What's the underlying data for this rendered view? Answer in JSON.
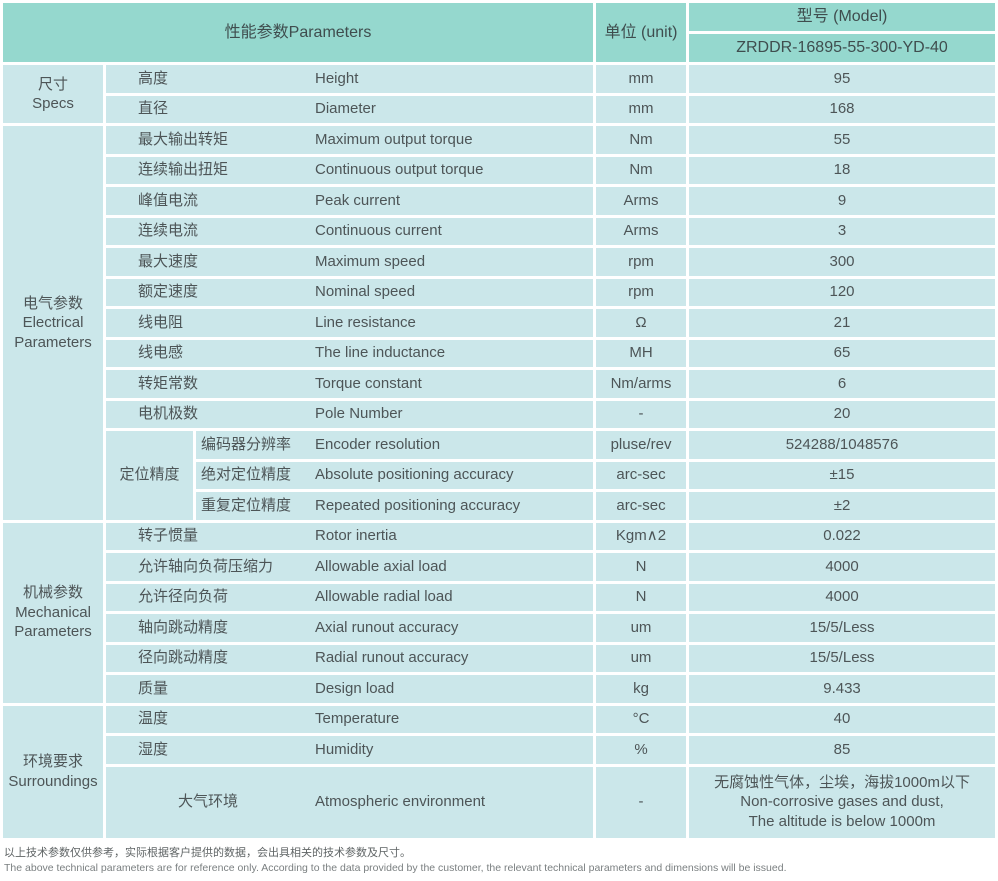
{
  "colors": {
    "header_bg": "#95d8ce",
    "cell_bg": "#cbe7ea",
    "header_text": "#3f4d4e",
    "cell_text": "#4d5557"
  },
  "header": {
    "parameters_label": "性能参数Parameters",
    "unit_label": "单位 (unit)",
    "model_label": "型号 (Model)",
    "model_value": "ZRDDR-16895-55-300-YD-40"
  },
  "sections": [
    {
      "label_lines": [
        "尺寸",
        "Specs"
      ],
      "rows": [
        {
          "zh": "高度",
          "en": "Height",
          "unit": "mm",
          "value": "95"
        },
        {
          "zh": "直径",
          "en": "Diameter",
          "unit": "mm",
          "value": "168"
        }
      ]
    },
    {
      "label_lines": [
        "电气参数",
        "Electrical",
        "Parameters"
      ],
      "rows": [
        {
          "zh": "最大输出转矩",
          "en": "Maximum output torque",
          "unit": "Nm",
          "value": "55"
        },
        {
          "zh": "连续输出扭矩",
          "en": "Continuous output torque",
          "unit": "Nm",
          "value": "18"
        },
        {
          "zh": "峰值电流",
          "en": "Peak current",
          "unit": "Arms",
          "value": "9"
        },
        {
          "zh": "连续电流",
          "en": "Continuous current",
          "unit": "Arms",
          "value": "3"
        },
        {
          "zh": "最大速度",
          "en": "Maximum speed",
          "unit": "rpm",
          "value": "300"
        },
        {
          "zh": "额定速度",
          "en": "Nominal speed",
          "unit": "rpm",
          "value": "120"
        },
        {
          "zh": "线电阻",
          "en": "Line resistance",
          "unit": "Ω",
          "value": "21"
        },
        {
          "zh": "线电感",
          "en": "The line inductance",
          "unit": "MH",
          "value": "65"
        },
        {
          "zh": "转矩常数",
          "en": "Torque constant",
          "unit": "Nm/arms",
          "value": "6"
        },
        {
          "zh": "电机极数",
          "en": "Pole Number",
          "unit": "-",
          "value": "20"
        }
      ],
      "subgroup": {
        "label": "定位精度",
        "rows": [
          {
            "zh": "编码器分辨率",
            "en": "Encoder resolution",
            "unit": "pluse/rev",
            "value": "524288/1048576"
          },
          {
            "zh": "绝对定位精度",
            "en": "Absolute positioning accuracy",
            "unit": "arc-sec",
            "value": "±15"
          },
          {
            "zh": "重复定位精度",
            "en": "Repeated positioning accuracy",
            "unit": "arc-sec",
            "value": "±2"
          }
        ]
      }
    },
    {
      "label_lines": [
        "机械参数",
        "Mechanical",
        "Parameters"
      ],
      "rows": [
        {
          "zh": "转子惯量",
          "en": "Rotor inertia",
          "unit": "Kgm∧2",
          "value": "0.022"
        },
        {
          "zh": "允许轴向负荷压缩力",
          "en": "Allowable axial load",
          "unit": "N",
          "value": "4000"
        },
        {
          "zh": "允许径向负荷",
          "en": "Allowable radial load",
          "unit": "N",
          "value": "4000"
        },
        {
          "zh": "轴向跳动精度",
          "en": "Axial runout accuracy",
          "unit": "um",
          "value": "15/5/Less"
        },
        {
          "zh": "径向跳动精度",
          "en": "Radial runout accuracy",
          "unit": "um",
          "value": "15/5/Less"
        },
        {
          "zh": "质量",
          "en": "Design load",
          "unit": "kg",
          "value": "9.433"
        }
      ]
    },
    {
      "label_lines": [
        "环境要求",
        "Surroundings"
      ],
      "rows": [
        {
          "zh": "温度",
          "en": "Temperature",
          "unit": "°C",
          "value": "40"
        },
        {
          "zh": "湿度",
          "en": "Humidity",
          "unit": "%",
          "value": "85"
        }
      ],
      "tall_row": {
        "zh": "大气环境",
        "en": "Atmospheric environment",
        "unit": "-",
        "value_lines": [
          "无腐蚀性气体，尘埃，海拔1000m以下",
          "Non-corrosive gases and dust,",
          "The altitude is below 1000m"
        ]
      }
    }
  ],
  "footnotes": {
    "zh": "以上技术参数仅供参考，实际根据客户提供的数据，会出具相关的技术参数及尺寸。",
    "en": "The above technical parameters are for reference only. According to the data provided by the customer, the relevant technical parameters and dimensions will be issued."
  }
}
